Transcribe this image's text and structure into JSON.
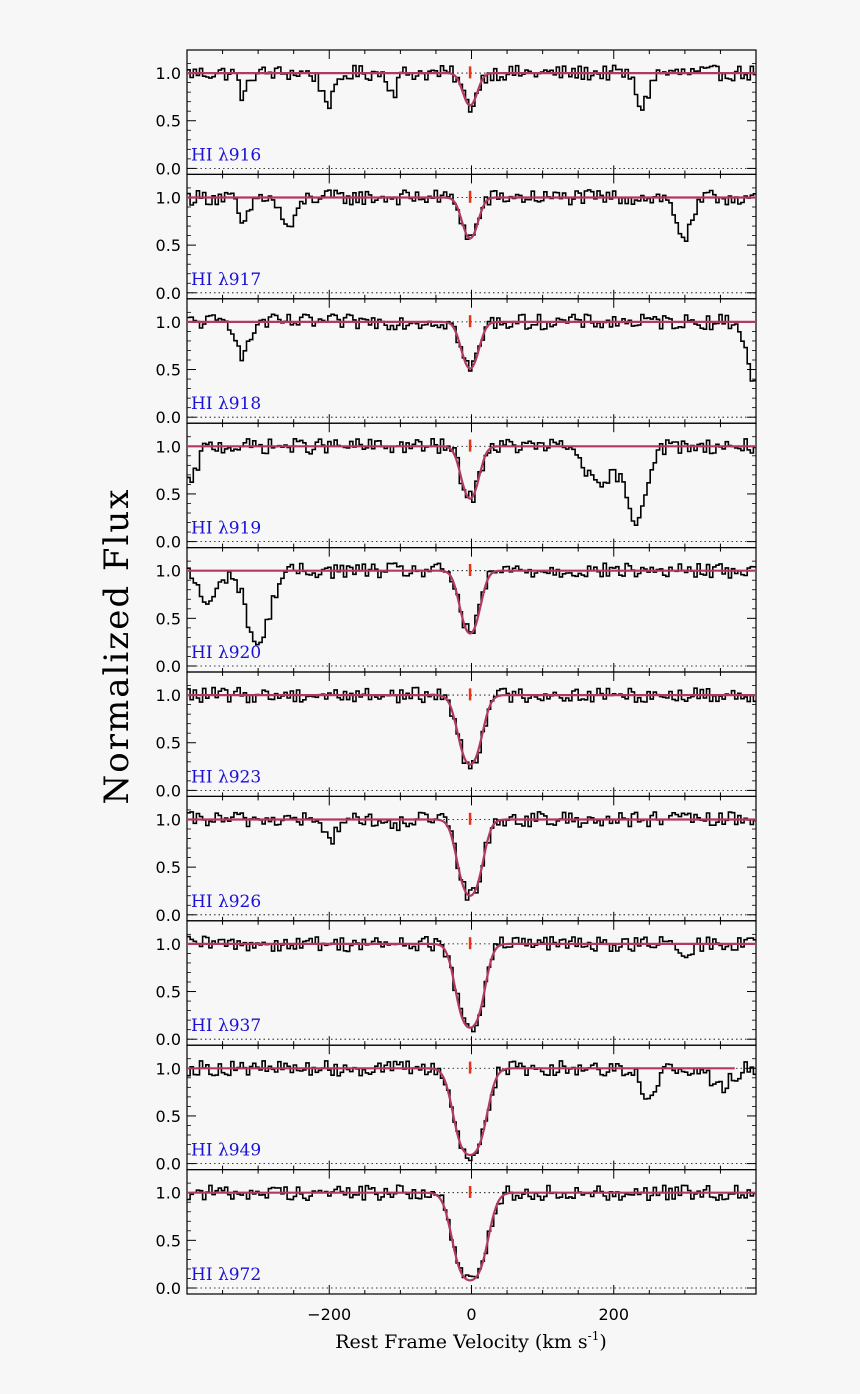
{
  "figure": {
    "ylabel": "Normalized Flux",
    "xlabel": "Rest Frame Velocity (km s",
    "xlabel_sup": "-1",
    "xlabel_close": ")"
  },
  "colors": {
    "data": "#000000",
    "fit": "#b23a62",
    "marker": "#e8321a",
    "label": "#1a10d6",
    "background": "#f7f7f7"
  },
  "chart_data": {
    "type": "line",
    "description_of_series": [
      "observed spectrum (histogram)",
      "model fit"
    ],
    "x_range": [
      -400,
      400
    ],
    "y_range": [
      0.0,
      1.2
    ],
    "x_ticks": [
      -200,
      0,
      200
    ],
    "x_tick_labels": [
      "−200",
      "0",
      "200"
    ],
    "y_ticks": [
      0.0,
      0.5,
      1.0
    ],
    "y_tick_labels": [
      "0.0",
      "0.5",
      "1.0"
    ],
    "component_velocity": -2,
    "panels": [
      {
        "label": "HI λ916",
        "fit_minimum": 0.66,
        "fit_width": 13,
        "extra_absorptions": [
          {
            "v": -320,
            "depth": 0.25,
            "width": 8
          },
          {
            "v": -200,
            "depth": 0.3,
            "width": 14
          },
          {
            "v": -110,
            "depth": 0.2,
            "width": 8
          },
          {
            "v": 240,
            "depth": 0.35,
            "width": 12
          }
        ]
      },
      {
        "label": "HI λ917",
        "fit_minimum": 0.57,
        "fit_width": 14,
        "extra_absorptions": [
          {
            "v": -320,
            "depth": 0.3,
            "width": 10
          },
          {
            "v": -260,
            "depth": 0.25,
            "width": 14
          },
          {
            "v": -250,
            "depth": 0.15,
            "width": 10
          },
          {
            "v": 300,
            "depth": 0.42,
            "width": 16
          }
        ]
      },
      {
        "label": "HI λ918",
        "fit_minimum": 0.51,
        "fit_width": 15,
        "extra_absorptions": [
          {
            "v": -320,
            "depth": 0.35,
            "width": 12
          },
          {
            "v": 395,
            "depth": 0.6,
            "width": 12
          }
        ]
      },
      {
        "label": "HI λ919",
        "fit_minimum": 0.45,
        "fit_width": 15,
        "extra_absorptions": [
          {
            "v": -395,
            "depth": 0.4,
            "width": 12
          },
          {
            "v": 180,
            "depth": 0.45,
            "width": 24
          },
          {
            "v": 230,
            "depth": 0.78,
            "width": 20
          }
        ]
      },
      {
        "label": "HI λ920",
        "fit_minimum": 0.34,
        "fit_width": 16,
        "extra_absorptions": [
          {
            "v": -370,
            "depth": 0.35,
            "width": 18
          },
          {
            "v": -300,
            "depth": 0.78,
            "width": 22
          }
        ]
      },
      {
        "label": "HI λ923",
        "fit_minimum": 0.27,
        "fit_width": 18,
        "extra_absorptions": []
      },
      {
        "label": "HI λ926",
        "fit_minimum": 0.2,
        "fit_width": 18,
        "extra_absorptions": [
          {
            "v": -200,
            "depth": 0.2,
            "width": 14
          },
          {
            "v": -110,
            "depth": 0.12,
            "width": 10
          }
        ]
      },
      {
        "label": "HI λ937",
        "fit_minimum": 0.12,
        "fit_width": 19,
        "extra_absorptions": [
          {
            "v": 300,
            "depth": 0.15,
            "width": 12
          }
        ]
      },
      {
        "label": "HI λ949",
        "fit_minimum": 0.09,
        "fit_width": 21,
        "extra_absorptions": [
          {
            "v": 250,
            "depth": 0.35,
            "width": 14
          },
          {
            "v": 350,
            "depth": 0.2,
            "width": 20
          }
        ]
      },
      {
        "label": "HI λ972",
        "fit_minimum": 0.08,
        "fit_width": 22,
        "extra_absorptions": []
      }
    ]
  }
}
